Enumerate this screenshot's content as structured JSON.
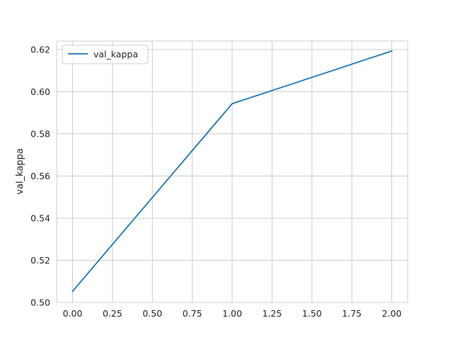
{
  "chart_data": {
    "type": "line",
    "title": "",
    "xlabel": "",
    "ylabel": "val_kappa",
    "x": [
      0,
      1,
      2
    ],
    "series": [
      {
        "name": "val_kappa",
        "values": [
          0.5053,
          0.5943,
          0.6193
        ],
        "color": "#1f77b4"
      }
    ],
    "xlim": [
      -0.1,
      2.1
    ],
    "ylim": [
      0.5,
      0.624
    ],
    "xticks": [
      0.0,
      0.25,
      0.5,
      0.75,
      1.0,
      1.25,
      1.5,
      1.75,
      2.0
    ],
    "xtick_labels": [
      "0.00",
      "0.25",
      "0.50",
      "0.75",
      "1.00",
      "1.25",
      "1.50",
      "1.75",
      "2.00"
    ],
    "yticks": [
      0.5,
      0.52,
      0.54,
      0.56,
      0.58,
      0.6,
      0.62
    ],
    "ytick_labels": [
      "0.50",
      "0.52",
      "0.54",
      "0.56",
      "0.58",
      "0.60",
      "0.62"
    ],
    "grid": true,
    "grid_color": "#cccccc",
    "legend_position": "top-left"
  }
}
